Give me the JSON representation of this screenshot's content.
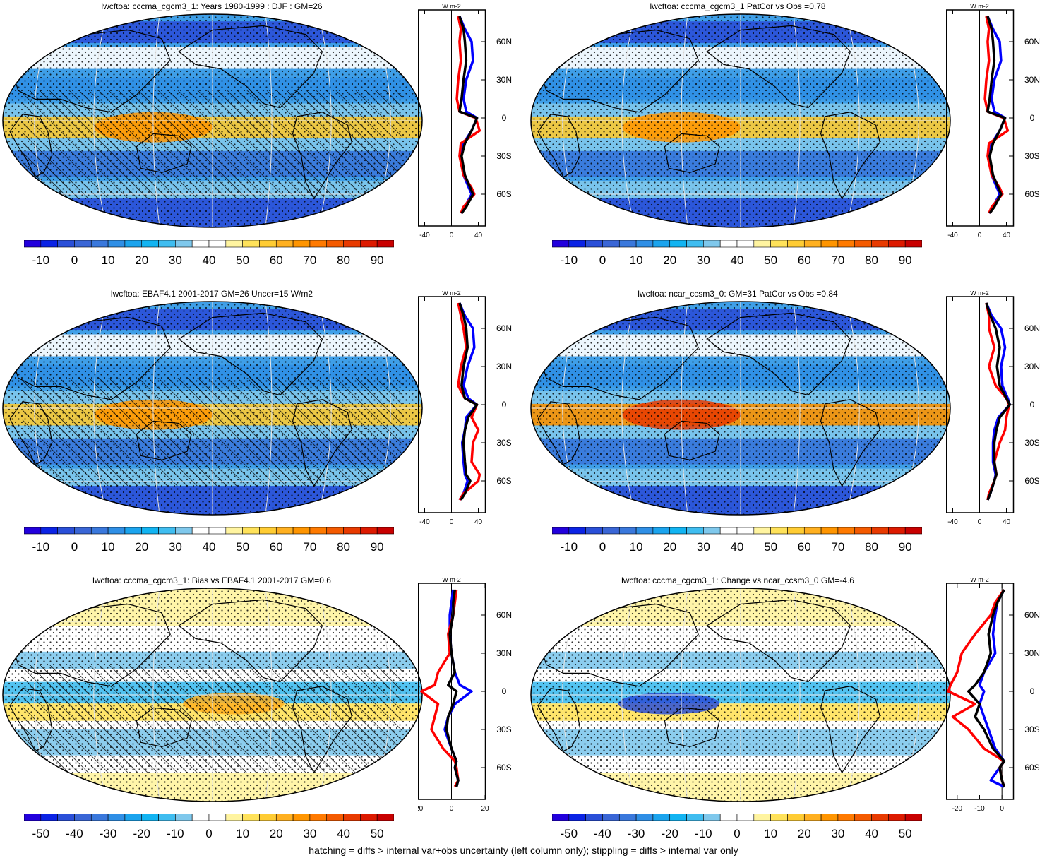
{
  "footer": "hatching = diffs > internal var+obs uncertainty (left column only); stippling = diffs > internal var only",
  "zonal_unit": "W m-2",
  "lat_ticks": [
    "60N",
    "30N",
    "0",
    "30S",
    "60S"
  ],
  "colors": {
    "model": "#000000",
    "obs": "#ff0000",
    "other": "#0000ff",
    "palette": [
      "#2200dd",
      "#0b23e5",
      "#2a4fd8",
      "#3a66d6",
      "#3a78dc",
      "#2f8fe6",
      "#1ba4ee",
      "#12b4f2",
      "#3fbdf0",
      "#7fc8ec",
      "#ffffff",
      "#ffffff",
      "#fff4a0",
      "#ffe25a",
      "#ffcc33",
      "#ffb020",
      "#ff9500",
      "#ff7a00",
      "#f45a00",
      "#e83a00",
      "#dd1a00",
      "#c80000"
    ]
  },
  "chart_data": [
    {
      "type": "heatmap",
      "title": "lwcftoa: cccma_cgcm3_1: Years 1980-1999 : DJF : GM=26",
      "colorbar_ticks": [
        "-10",
        "0",
        "10",
        "20",
        "30",
        "40",
        "50",
        "60",
        "70",
        "80",
        "90"
      ],
      "colorbar_range": [
        -15,
        95
      ],
      "zonal": {
        "x_ticks": [
          "-40",
          "0",
          "40"
        ],
        "xlim": [
          -50,
          50
        ],
        "lat": [
          80,
          70,
          60,
          45,
          30,
          15,
          5,
          0,
          -10,
          -20,
          -30,
          -45,
          -55,
          -60,
          -70,
          -75
        ],
        "series": [
          {
            "name": "model",
            "values": [
              12,
              18,
              20,
              22,
              18,
              15,
              12,
              38,
              30,
              20,
              15,
              20,
              28,
              32,
              22,
              15
            ]
          },
          {
            "name": "obs",
            "values": [
              10,
              14,
              12,
              14,
              10,
              8,
              12,
              36,
              42,
              14,
              12,
              18,
              30,
              34,
              18,
              14
            ]
          },
          {
            "name": "other",
            "values": [
              12,
              20,
              30,
              32,
              22,
              18,
              22,
              38,
              30,
              18,
              14,
              18,
              26,
              30,
              20,
              14
            ]
          }
        ]
      }
    },
    {
      "type": "heatmap",
      "title": "lwcftoa: cccma_cgcm3_1 PatCor vs Obs =0.78",
      "colorbar_ticks": [
        "-10",
        "0",
        "10",
        "20",
        "30",
        "40",
        "50",
        "60",
        "70",
        "80",
        "90"
      ],
      "colorbar_range": [
        -15,
        95
      ],
      "zonal": {
        "x_ticks": [
          "-40",
          "0",
          "40"
        ],
        "xlim": [
          -50,
          50
        ],
        "lat": [
          80,
          70,
          60,
          45,
          30,
          15,
          5,
          0,
          -10,
          -20,
          -30,
          -45,
          -55,
          -60,
          -70,
          -75
        ],
        "series": [
          {
            "name": "model",
            "values": [
              12,
              18,
              20,
              22,
              18,
              15,
              12,
              38,
              30,
              20,
              15,
              20,
              28,
              32,
              22,
              15
            ]
          },
          {
            "name": "obs",
            "values": [
              10,
              14,
              12,
              14,
              10,
              8,
              12,
              36,
              42,
              14,
              12,
              18,
              30,
              34,
              18,
              14
            ]
          },
          {
            "name": "other",
            "values": [
              12,
              20,
              30,
              32,
              22,
              18,
              22,
              38,
              30,
              18,
              14,
              18,
              26,
              30,
              20,
              14
            ]
          }
        ]
      }
    },
    {
      "type": "heatmap",
      "title": "lwcftoa: EBAF4.1 2001-2017 GM=26 Uncer=15 W/m2",
      "colorbar_ticks": [
        "-10",
        "0",
        "10",
        "20",
        "30",
        "40",
        "50",
        "60",
        "70",
        "80",
        "90"
      ],
      "colorbar_range": [
        -15,
        95
      ],
      "zonal": {
        "x_ticks": [
          "-40",
          "0",
          "40"
        ],
        "xlim": [
          -50,
          50
        ],
        "lat": [
          80,
          70,
          60,
          45,
          30,
          15,
          5,
          0,
          -10,
          -20,
          -30,
          -45,
          -55,
          -60,
          -70,
          -75
        ],
        "series": [
          {
            "name": "model",
            "values": [
              12,
              18,
              22,
              24,
              18,
              15,
              20,
              38,
              25,
              20,
              18,
              20,
              22,
              28,
              20,
              14
            ]
          },
          {
            "name": "obs",
            "values": [
              10,
              14,
              18,
              22,
              14,
              10,
              20,
              38,
              30,
              40,
              32,
              30,
              42,
              40,
              18,
              12
            ]
          },
          {
            "name": "other",
            "values": [
              12,
              20,
              32,
              34,
              24,
              18,
              25,
              38,
              22,
              20,
              16,
              18,
              20,
              24,
              18,
              12
            ]
          }
        ]
      }
    },
    {
      "type": "heatmap",
      "title": "lwcftoa: ncar_ccsm3_0: GM=31 PatCor vs Obs =0.84",
      "colorbar_ticks": [
        "-10",
        "0",
        "10",
        "20",
        "30",
        "40",
        "50",
        "60",
        "70",
        "80",
        "90"
      ],
      "colorbar_range": [
        -15,
        95
      ],
      "zonal": {
        "x_ticks": [
          "-40",
          "0",
          "40"
        ],
        "xlim": [
          -50,
          50
        ],
        "lat": [
          80,
          70,
          60,
          45,
          30,
          15,
          5,
          0,
          -10,
          -20,
          -30,
          -45,
          -55,
          -60,
          -70,
          -75
        ],
        "series": [
          {
            "name": "model",
            "values": [
              10,
              16,
              24,
              30,
              26,
              30,
              40,
              45,
              30,
              25,
              22,
              22,
              25,
              22,
              16,
              12
            ]
          },
          {
            "name": "obs",
            "values": [
              10,
              14,
              14,
              22,
              14,
              24,
              40,
              44,
              40,
              38,
              30,
              22,
              25,
              22,
              14,
              12
            ]
          },
          {
            "name": "other",
            "values": [
              10,
              18,
              32,
              38,
              32,
              34,
              42,
              45,
              28,
              22,
              20,
              20,
              24,
              22,
              16,
              12
            ]
          }
        ]
      }
    },
    {
      "type": "heatmap",
      "title": "lwcftoa: cccma_cgcm3_1: Bias vs EBAF4.1 2001-2017 GM=0.6",
      "colorbar_ticks": [
        "-50",
        "-40",
        "-30",
        "-20",
        "-10",
        "0",
        "10",
        "20",
        "30",
        "40",
        "50"
      ],
      "colorbar_range": [
        -55,
        55
      ],
      "zonal": {
        "x_ticks": [
          "-20",
          "0",
          "20"
        ],
        "xlim": [
          -20,
          20
        ],
        "lat": [
          80,
          70,
          60,
          45,
          30,
          15,
          5,
          0,
          -10,
          -20,
          -30,
          -45,
          -55,
          -60,
          -70,
          -75
        ],
        "series": [
          {
            "name": "model",
            "values": [
              2,
              1,
              1,
              -1,
              0,
              2,
              -2,
              3,
              1,
              -2,
              -3,
              0,
              3,
              2,
              4,
              3
            ]
          },
          {
            "name": "obs",
            "values": [
              3,
              2,
              1,
              -2,
              -1,
              -8,
              -10,
              -18,
              -8,
              -10,
              -12,
              -5,
              2,
              3,
              4,
              2
            ]
          },
          {
            "name": "other",
            "values": [
              1,
              0,
              -1,
              -1,
              0,
              2,
              5,
              12,
              2,
              -2,
              -4,
              0,
              3,
              2,
              4,
              3
            ]
          }
        ]
      }
    },
    {
      "type": "heatmap",
      "title": "lwcftoa: cccma_cgcm3_1: Change vs ncar_ccsm3_0 GM=-4.6",
      "colorbar_ticks": [
        "-50",
        "-40",
        "-30",
        "-20",
        "-10",
        "0",
        "10",
        "20",
        "30",
        "40",
        "50"
      ],
      "colorbar_range": [
        -55,
        55
      ],
      "zonal": {
        "x_ticks": [
          "-20",
          "-10",
          "0"
        ],
        "xlim": [
          -25,
          5
        ],
        "lat": [
          80,
          70,
          60,
          45,
          30,
          15,
          5,
          0,
          -10,
          -20,
          -30,
          -45,
          -55,
          -60,
          -70,
          -75
        ],
        "series": [
          {
            "name": "model",
            "values": [
              1,
              -2,
              -4,
              -6,
              -5,
              -8,
              -12,
              -15,
              -10,
              -12,
              -8,
              -4,
              1,
              -1,
              0,
              1
            ]
          },
          {
            "name": "obs",
            "values": [
              1,
              -3,
              -5,
              -12,
              -18,
              -20,
              -23,
              -24,
              -12,
              -22,
              -15,
              -8,
              1,
              -1,
              0,
              1
            ]
          },
          {
            "name": "other",
            "values": [
              1,
              -2,
              -3,
              -4,
              -3,
              -8,
              -10,
              -8,
              -10,
              -8,
              -6,
              -3,
              1,
              -1,
              -5,
              1
            ]
          }
        ]
      }
    }
  ]
}
